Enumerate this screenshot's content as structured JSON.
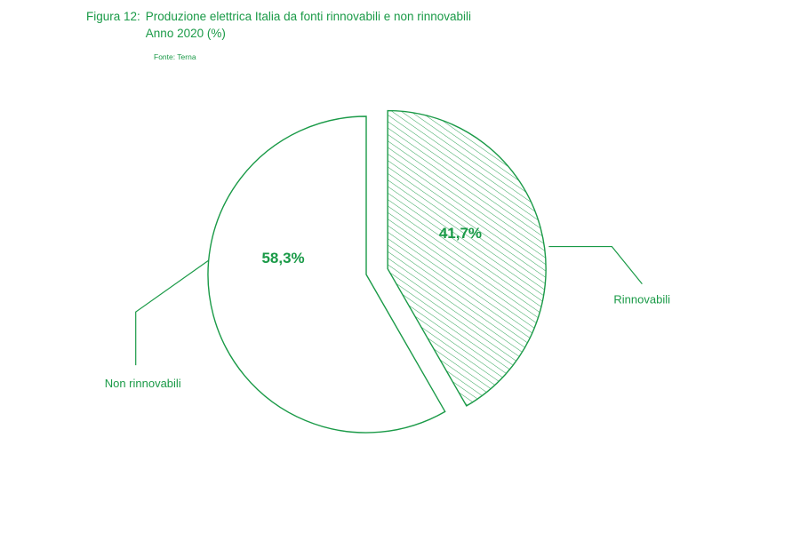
{
  "figure": {
    "label": "Figura 12:",
    "title": "Produzione elettrica Italia da fonti rinnovabili e non rinnovabili",
    "subtitle": "Anno 2020 (%)",
    "source": "Fonte: Terna"
  },
  "colors": {
    "accent": "#1a9a47"
  },
  "chart_data": {
    "type": "pie",
    "title": "Produzione elettrica Italia da fonti rinnovabili e non rinnovabili",
    "subtitle": "Anno 2020 (%)",
    "categories": [
      "Rinnovabili",
      "Non rinnovabili"
    ],
    "values": [
      41.7,
      58.3
    ],
    "value_labels": [
      "41,7%",
      "58,3%"
    ],
    "unit": "%",
    "exploded": [
      "Rinnovabili"
    ],
    "fills": [
      "hatched",
      "white"
    ],
    "legend": "none (callout labels)"
  }
}
